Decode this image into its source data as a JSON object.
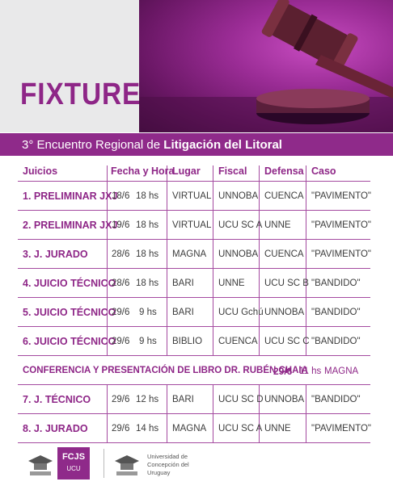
{
  "header": {
    "title": "FIXTURE",
    "subtitle_prefix": "3° Encuentro Regional de ",
    "subtitle_bold": "Litigación del Litoral"
  },
  "columns": [
    "Juicios",
    "Fecha y Hora",
    "Lugar",
    "Fiscal",
    "Defensa",
    "Caso"
  ],
  "rows": [
    {
      "num": "1.",
      "juicio": "PRELIMINAR JXJ",
      "date": "18/6",
      "hour": "18 hs",
      "lugar": "VIRTUAL",
      "fiscal": "UNNOBA",
      "defensa": "CUENCA",
      "caso": "\"PAVIMENTO\""
    },
    {
      "num": "2.",
      "juicio": "PRELIMINAR JXJ",
      "date": "19/6",
      "hour": "18 hs",
      "lugar": "VIRTUAL",
      "fiscal": "UCU SC A",
      "defensa": "UNNE",
      "caso": "\"PAVIMENTO\""
    },
    {
      "num": "3.",
      "juicio": "J. JURADO",
      "date": "28/6",
      "hour": "18 hs",
      "lugar": "MAGNA",
      "fiscal": "UNNOBA",
      "defensa": "CUENCA",
      "caso": "\"PAVIMENTO\""
    },
    {
      "num": "4.",
      "juicio": "JUICIO TÉCNICO",
      "date": "28/6",
      "hour": "18 hs",
      "lugar": "BARI",
      "fiscal": "UNNE",
      "defensa": "UCU SC B",
      "caso": "\"BANDIDO\""
    },
    {
      "num": "5.",
      "juicio": "JUICIO TÉCNICO",
      "date": "29/6",
      "hour": "9 hs",
      "lugar": "BARI",
      "fiscal": "UCU Gchú",
      "defensa": "UNNOBA",
      "caso": "\"BANDIDO\""
    },
    {
      "num": "6.",
      "juicio": "JUICIO TÉCNICO",
      "date": "29/6",
      "hour": "9 hs",
      "lugar": "BIBLIO",
      "fiscal": "CUENCA",
      "defensa": "UCU SC C",
      "caso": "\"BANDIDO\""
    },
    {
      "num": "7.",
      "juicio": "J. TÉCNICO",
      "date": "29/6",
      "hour": "12 hs",
      "lugar": "BARI",
      "fiscal": "UCU SC D",
      "defensa": "UNNOBA",
      "caso": "\"BANDIDO\""
    },
    {
      "num": "8.",
      "juicio": "J. JURADO",
      "date": "29/6",
      "hour": "14 hs",
      "lugar": "MAGNA",
      "fiscal": "UCU SC A",
      "defensa": "UNNE",
      "caso": "\"PAVIMENTO\""
    }
  ],
  "conference": {
    "label": "CONFERENCIA Y PRESENTACIÓN DE LIBRO DR. RUBÉN CHAIA",
    "date": "29/6",
    "hour": "11 hs",
    "place": "MAGNA"
  },
  "footer": {
    "fcjs_name": "FCJS",
    "fcjs_sub": "UCU",
    "university_line1": "Universidad de",
    "university_line2": "Concepción del",
    "university_line3": "Uruguay"
  },
  "colors": {
    "accent": "#8e2687",
    "band": "#8f2a8a",
    "hero_bg": "#e9e9ea"
  },
  "icons": [
    "gavel-icon",
    "graduation-cap-icon"
  ]
}
